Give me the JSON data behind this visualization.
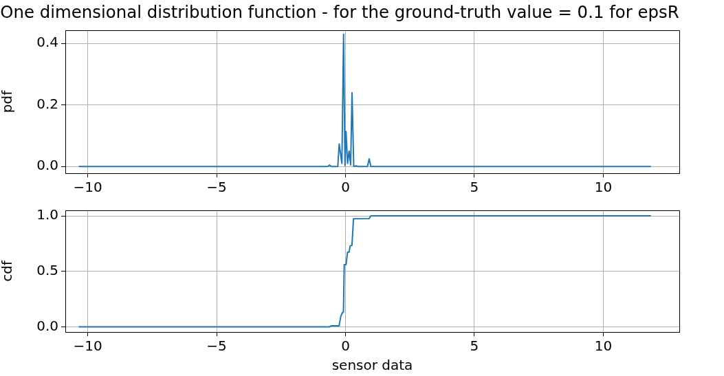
{
  "chart_data": [
    {
      "type": "line",
      "title": "One dimensional distribution function - for the ground-truth value = 0.1 for epsR",
      "ylabel": "pdf",
      "grid": true,
      "xlim": [
        -10.87,
        12.95
      ],
      "xticks": [
        {
          "value": -10,
          "label": "−10"
        },
        {
          "value": -5,
          "label": "−5"
        },
        {
          "value": 0,
          "label": "0"
        },
        {
          "value": 5,
          "label": "5"
        },
        {
          "value": 10,
          "label": "10"
        }
      ],
      "ylim": [
        -0.022,
        0.443
      ],
      "yticks": [
        {
          "value": 0,
          "label": "0.0"
        },
        0.2,
        0.4
      ],
      "series": [
        {
          "color": "#1f77b4",
          "x": [
            -10.33,
            -0.69,
            -0.62,
            -0.55,
            -0.3,
            -0.245,
            -0.14,
            -0.075,
            -0.02,
            0.02,
            0.08,
            0.14,
            0.2,
            0.253,
            0.32,
            0.41,
            0.5,
            0.85,
            0.92,
            0.98,
            11.83
          ],
          "values": [
            0,
            0,
            0.005,
            0,
            0,
            0.073,
            0.01,
            0.43,
            0.003,
            0.114,
            0.01,
            0.05,
            0.005,
            0.24,
            0,
            0.002,
            0,
            0,
            0.025,
            0,
            0
          ]
        }
      ]
    },
    {
      "type": "line",
      "xlabel": "sensor data",
      "ylabel": "cdf",
      "grid": true,
      "xlim": [
        -10.87,
        12.95
      ],
      "xticks": [
        {
          "value": -10,
          "label": "−10"
        },
        {
          "value": -5,
          "label": "−5"
        },
        {
          "value": 0,
          "label": "0"
        },
        {
          "value": 5,
          "label": "5"
        },
        {
          "value": 10,
          "label": "10"
        }
      ],
      "ylim": [
        -0.047,
        1.05
      ],
      "yticks": [
        {
          "value": 0,
          "label": "0.0"
        },
        {
          "value": 0.5,
          "label": "0.5"
        },
        {
          "value": 1,
          "label": "1.0"
        }
      ],
      "series": [
        {
          "color": "#1f77b4",
          "x": [
            -10.33,
            -0.62,
            -0.55,
            -0.25,
            -0.18,
            -0.12,
            -0.08,
            -0.05,
            0.02,
            0.08,
            0.14,
            0.18,
            0.25,
            0.31,
            0.92,
            0.98,
            11.83
          ],
          "values": [
            0,
            0,
            0.009,
            0.009,
            0.096,
            0.128,
            0.131,
            0.56,
            0.56,
            0.673,
            0.673,
            0.73,
            0.734,
            0.974,
            0.976,
            1,
            1
          ]
        }
      ]
    }
  ]
}
